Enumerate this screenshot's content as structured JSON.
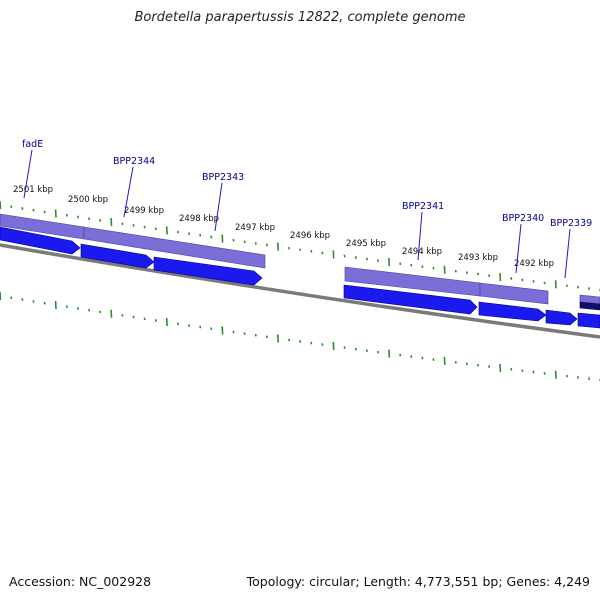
{
  "title": "Bordetella parapertussis 12822, complete genome",
  "footer": {
    "accession_label": "Accession: NC_002928",
    "summary_label": "Topology: circular; Length: 4,773,551 bp; Genes: 4,249"
  },
  "colors": {
    "gene_forward": "#1a1aee",
    "gene_forward_edge": "#00008b",
    "gene_band": "#7a6fd6",
    "gene_band_edge": "#4a3fa6",
    "backbone": "#7a7a7a",
    "tick": "#2e8b2e",
    "label_text": "#00008b",
    "label_line": "#1a1acc",
    "kbp_text": "#111111"
  },
  "kbp_ticks": [
    {
      "text": "2501 kbp"
    },
    {
      "text": "2500 kbp"
    },
    {
      "text": "2499 kbp"
    },
    {
      "text": "2498 kbp"
    },
    {
      "text": "2497 kbp"
    },
    {
      "text": "2496 kbp"
    },
    {
      "text": "2495 kbp"
    },
    {
      "text": "2494 kbp"
    },
    {
      "text": "2493 kbp"
    },
    {
      "text": "2492 kbp"
    }
  ],
  "gene_labels": [
    {
      "text": "fadE"
    },
    {
      "text": "BPP2344"
    },
    {
      "text": "BPP2343"
    },
    {
      "text": "BPP2341"
    },
    {
      "text": "BPP2340"
    },
    {
      "text": "BPP2339"
    }
  ]
}
